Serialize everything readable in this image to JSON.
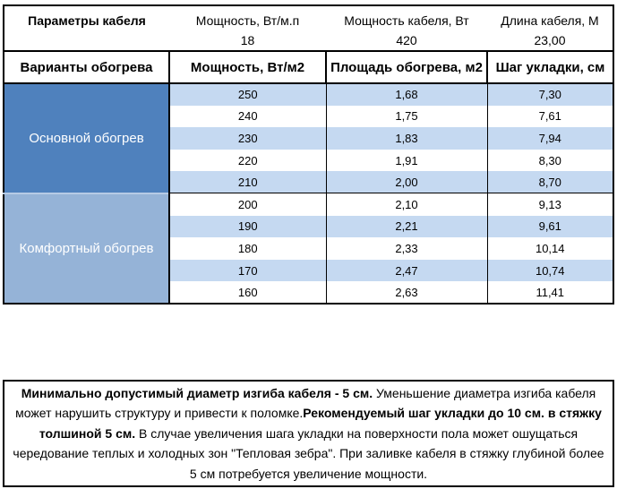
{
  "params": {
    "title": "Параметры кабеля",
    "columns": [
      {
        "label": "Мощность, Вт/м.п",
        "value": "18"
      },
      {
        "label": "Мощность кабеля, Вт",
        "value": "420"
      },
      {
        "label": "Длина кабеля, М",
        "value": "23,00"
      }
    ]
  },
  "table": {
    "headers": [
      "Варианты обогрева",
      "Мощность, Вт/м2",
      "Площадь обогрева, м2",
      "Шаг укладки, см"
    ],
    "sections": [
      {
        "label": "Основной обогрев",
        "rows": [
          [
            "250",
            "1,68",
            "7,30"
          ],
          [
            "240",
            "1,75",
            "7,61"
          ],
          [
            "230",
            "1,83",
            "7,94"
          ],
          [
            "220",
            "1,91",
            "8,30"
          ],
          [
            "210",
            "2,00",
            "8,70"
          ]
        ]
      },
      {
        "label": "Комфортный обогрев",
        "rows": [
          [
            "200",
            "2,10",
            "9,13"
          ],
          [
            "190",
            "2,21",
            "9,61"
          ],
          [
            "180",
            "2,33",
            "10,14"
          ],
          [
            "170",
            "2,47",
            "10,74"
          ],
          [
            "160",
            "2,63",
            "11,41"
          ]
        ]
      }
    ]
  },
  "note": {
    "segments": [
      {
        "bold": true,
        "text": "Минимально допустимый диаметр изгиба кабеля - 5 см."
      },
      {
        "bold": false,
        "text": " Уменьшение диаметра изгиба кабеля может нарушить структуру и привести к поломке."
      },
      {
        "bold": true,
        "text": "Рекомендуемый шаг укладки до 10 см. в стяжку толшиной 5 см."
      },
      {
        "bold": false,
        "text": " В случае увеличения шага укладки на поверхности пола может ошущаться чередование теплых и холодных зон \"Тепловая зебра\". При заливке кабеля в стяжку глубиной более 5 см потребуется увеличение мощности."
      }
    ]
  },
  "colors": {
    "main_heat_bg": "#4f81bd",
    "comfort_heat_bg": "#95b3d7",
    "stripe_bg": "#c5d9f1",
    "label_text": "#ffffff",
    "border": "#000000"
  }
}
